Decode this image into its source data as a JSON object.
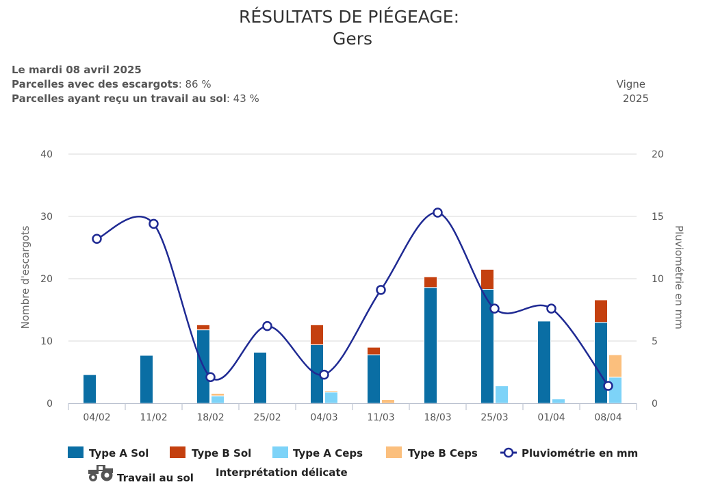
{
  "header": {
    "title": "RÉSULTATS DE PIÉGEAGE:",
    "subtitle": "Gers",
    "date": "Le mardi 08 avril 2025",
    "stat1_label": "Parcelles avec des escargots",
    "stat1_value": ": 86 %",
    "stat2_label": "Parcelles ayant reçu un travail au sol",
    "stat2_value": ": 43 %",
    "crop": "Vigne",
    "year": "2025"
  },
  "legend": {
    "type_a_sol": "Type A Sol",
    "type_b_sol": "Type B Sol",
    "type_a_ceps": "Type A Ceps",
    "type_b_ceps": "Type B Ceps",
    "pluvio": "Pluviométrie en mm",
    "travail": "Travail au sol",
    "interpretation": "Interprétation délicate"
  },
  "chart_data": {
    "type": "bar",
    "categories": [
      "04/02",
      "11/02",
      "18/02",
      "25/02",
      "04/03",
      "11/03",
      "18/03",
      "25/03",
      "01/04",
      "08/04"
    ],
    "ylabel": "Nombre d'escargots",
    "y2label": "Pluviométrie en mm",
    "ylim": [
      0,
      40
    ],
    "y2lim": [
      0,
      20
    ],
    "yticks": [
      0,
      10,
      20,
      30,
      40
    ],
    "y2ticks": [
      0,
      5,
      10,
      15,
      20
    ],
    "grid": true,
    "legend_position": "bottom",
    "series": [
      {
        "name": "Type A Sol",
        "stack": "sol",
        "color": "#0a6ea4",
        "values": [
          4.6,
          7.7,
          11.8,
          8.2,
          9.4,
          7.8,
          18.6,
          18.3,
          13.2,
          13.0
        ]
      },
      {
        "name": "Type B Sol",
        "stack": "sol",
        "color": "#c4400f",
        "values": [
          0,
          0,
          0.8,
          0,
          3.2,
          1.2,
          1.7,
          3.2,
          0,
          3.6
        ]
      },
      {
        "name": "Type A Ceps",
        "stack": "ceps",
        "color": "#7dd3f8",
        "values": [
          0,
          0,
          1.2,
          0,
          1.8,
          0,
          0,
          2.8,
          0.7,
          4.2
        ]
      },
      {
        "name": "Type B Ceps",
        "stack": "ceps",
        "color": "#fbbf7d",
        "values": [
          0,
          0,
          0.4,
          0,
          0.2,
          0.6,
          0,
          0,
          0,
          3.6
        ]
      },
      {
        "name": "Pluviométrie en mm",
        "type": "line",
        "axis": "right",
        "color": "#1f2a93",
        "values": [
          13.2,
          14.4,
          2.1,
          6.2,
          2.3,
          9.1,
          15.3,
          7.6,
          7.6,
          1.4
        ]
      }
    ]
  }
}
